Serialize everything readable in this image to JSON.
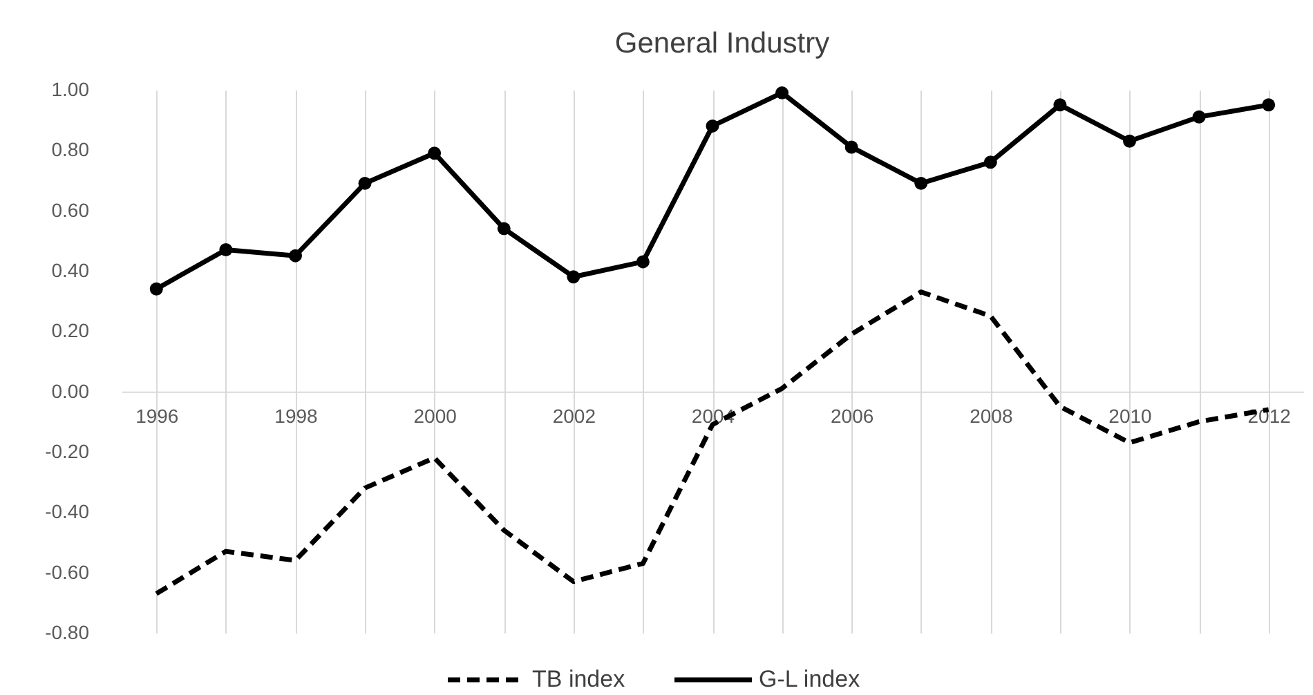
{
  "chart_data": {
    "type": "line",
    "title": "General Industry",
    "categories": [
      "1996",
      null,
      "1998",
      null,
      "2000",
      null,
      "2002",
      null,
      "2004",
      null,
      "2006",
      null,
      "2008",
      null,
      "2010",
      null,
      "2012"
    ],
    "series": [
      {
        "name": "TB index",
        "color": "#000000",
        "line_style": "dashed",
        "marker": "none",
        "values": [
          -0.67,
          -0.53,
          -0.56,
          -0.32,
          -0.22,
          -0.46,
          -0.63,
          -0.57,
          -0.11,
          0.01,
          0.19,
          0.33,
          0.25,
          -0.05,
          -0.17,
          -0.1,
          -0.06
        ]
      },
      {
        "name": "G-L index",
        "color": "#000000",
        "line_style": "solid",
        "marker": "circle",
        "values": [
          0.34,
          0.47,
          0.45,
          0.69,
          0.79,
          0.54,
          0.38,
          0.43,
          0.88,
          0.99,
          0.81,
          0.69,
          0.76,
          0.95,
          0.83,
          0.91,
          0.95
        ]
      }
    ],
    "ylim": [
      -0.8,
      1.0
    ],
    "yticks": [
      {
        "value": -0.8,
        "label": "-0.80"
      },
      {
        "value": -0.6,
        "label": "-0.60"
      },
      {
        "value": -0.4,
        "label": "-0.40"
      },
      {
        "value": -0.2,
        "label": "-0.20"
      },
      {
        "value": 0,
        "label": "0.00"
      },
      {
        "value": 0.2,
        "label": "0.20"
      },
      {
        "value": 0.4,
        "label": "0.40"
      },
      {
        "value": 0.6,
        "label": "0.60"
      },
      {
        "value": 0.8,
        "label": "0.80"
      },
      {
        "value": 1.0,
        "label": "1.00"
      }
    ],
    "grid": "x",
    "legend": "bottom"
  }
}
